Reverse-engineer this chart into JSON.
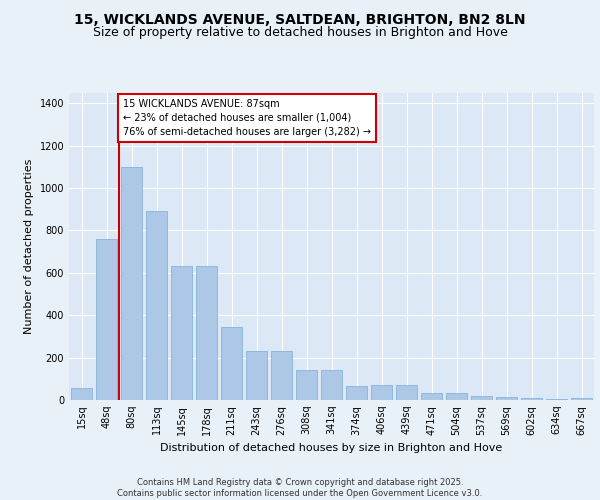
{
  "title": "15, WICKLANDS AVENUE, SALTDEAN, BRIGHTON, BN2 8LN",
  "subtitle": "Size of property relative to detached houses in Brighton and Hove",
  "xlabel": "Distribution of detached houses by size in Brighton and Hove",
  "ylabel": "Number of detached properties",
  "categories": [
    "15sq",
    "48sq",
    "80sq",
    "113sq",
    "145sq",
    "178sq",
    "211sq",
    "243sq",
    "276sq",
    "308sq",
    "341sq",
    "374sq",
    "406sq",
    "439sq",
    "471sq",
    "504sq",
    "537sq",
    "569sq",
    "602sq",
    "634sq",
    "667sq"
  ],
  "values": [
    55,
    760,
    1100,
    890,
    630,
    630,
    345,
    230,
    230,
    140,
    140,
    65,
    70,
    70,
    35,
    35,
    20,
    15,
    10,
    5,
    10
  ],
  "bar_color": "#adc8e6",
  "bar_edge_color": "#7aacd4",
  "background_color": "#dce8f5",
  "grid_color": "#ffffff",
  "vline_x_index": 2,
  "vline_color": "#cc0000",
  "annotation_text": "15 WICKLANDS AVENUE: 87sqm\n← 23% of detached houses are smaller (1,004)\n76% of semi-detached houses are larger (3,282) →",
  "annotation_box_color": "#cc0000",
  "ylim": [
    0,
    1450
  ],
  "yticks": [
    0,
    200,
    400,
    600,
    800,
    1000,
    1200,
    1400
  ],
  "footer_text": "Contains HM Land Registry data © Crown copyright and database right 2025.\nContains public sector information licensed under the Open Government Licence v3.0.",
  "title_fontsize": 10,
  "subtitle_fontsize": 9,
  "label_fontsize": 8,
  "tick_fontsize": 7,
  "annotation_fontsize": 7,
  "footer_fontsize": 6,
  "fig_bg_color": "#e8f0f8"
}
